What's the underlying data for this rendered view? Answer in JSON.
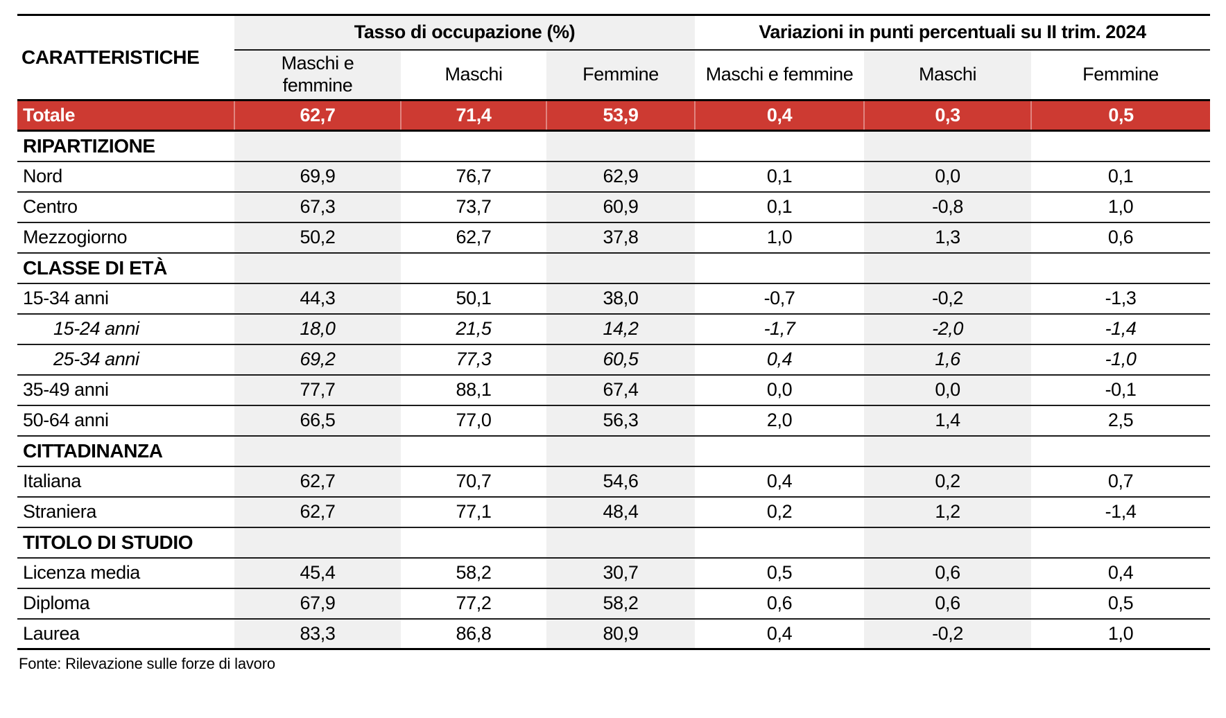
{
  "table": {
    "corner_label": "CARATTERISTICHE",
    "group_headers": [
      {
        "label": "Tasso di occupazione (%)"
      },
      {
        "label": "Variazioni in punti percentuali su II trim. 2024"
      }
    ],
    "sub_headers": [
      "Maschi e femmine",
      "Maschi",
      "Femmine",
      "Maschi e femmine",
      "Maschi",
      "Femmine"
    ],
    "total_row": {
      "label": "Totale",
      "values": [
        "62,7",
        "71,4",
        "53,9",
        "0,4",
        "0,3",
        "0,5"
      ]
    },
    "sections": [
      {
        "title": "RIPARTIZIONE",
        "rows": [
          {
            "label": "Nord",
            "values": [
              "69,9",
              "76,7",
              "62,9",
              "0,1",
              "0,0",
              "0,1"
            ]
          },
          {
            "label": "Centro",
            "values": [
              "67,3",
              "73,7",
              "60,9",
              "0,1",
              "-0,8",
              "1,0"
            ]
          },
          {
            "label": "Mezzogiorno",
            "values": [
              "50,2",
              "62,7",
              "37,8",
              "1,0",
              "1,3",
              "0,6"
            ]
          }
        ]
      },
      {
        "title": "CLASSE DI ETÀ",
        "rows": [
          {
            "label": "15-34 anni",
            "values": [
              "44,3",
              "50,1",
              "38,0",
              "-0,7",
              "-0,2",
              "-1,3"
            ]
          },
          {
            "label": "15-24 anni",
            "italic": true,
            "values": [
              "18,0",
              "21,5",
              "14,2",
              "-1,7",
              "-2,0",
              "-1,4"
            ]
          },
          {
            "label": "25-34 anni",
            "italic": true,
            "values": [
              "69,2",
              "77,3",
              "60,5",
              "0,4",
              "1,6",
              "-1,0"
            ]
          },
          {
            "label": "35-49 anni",
            "values": [
              "77,7",
              "88,1",
              "67,4",
              "0,0",
              "0,0",
              "-0,1"
            ]
          },
          {
            "label": "50-64 anni",
            "values": [
              "66,5",
              "77,0",
              "56,3",
              "2,0",
              "1,4",
              "2,5"
            ]
          }
        ]
      },
      {
        "title": "CITTADINANZA",
        "rows": [
          {
            "label": "Italiana",
            "values": [
              "62,7",
              "70,7",
              "54,6",
              "0,4",
              "0,2",
              "0,7"
            ]
          },
          {
            "label": "Straniera",
            "values": [
              "62,7",
              "77,1",
              "48,4",
              "0,2",
              "1,2",
              "-1,4"
            ]
          }
        ]
      },
      {
        "title": "TITOLO DI STUDIO",
        "rows": [
          {
            "label": "Licenza media",
            "values": [
              "45,4",
              "58,2",
              "30,7",
              "0,5",
              "0,6",
              "0,4"
            ]
          },
          {
            "label": "Diploma",
            "values": [
              "67,9",
              "77,2",
              "58,2",
              "0,6",
              "0,6",
              "0,5"
            ]
          },
          {
            "label": "Laurea",
            "values": [
              "83,3",
              "86,8",
              "80,9",
              "0,4",
              "-0,2",
              "1,0"
            ]
          }
        ]
      }
    ],
    "footer": "Fonte: Rilevazione sulle forze di lavoro"
  },
  "colors": {
    "accent_red": "#cd3a32",
    "stripe_gray": "#f0f0f0",
    "line_black": "#000000"
  }
}
